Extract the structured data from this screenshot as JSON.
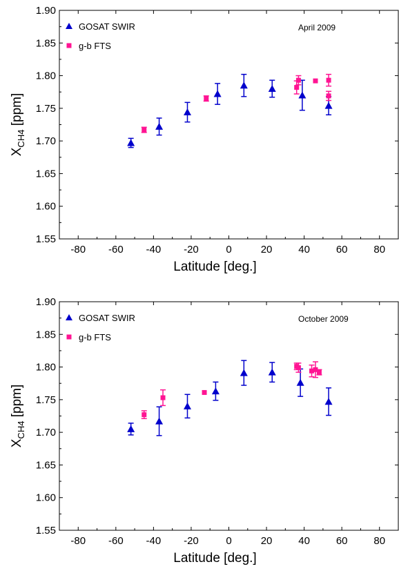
{
  "chart_data": [
    {
      "type": "scatter",
      "title": "",
      "annotation": "April 2009",
      "xlabel": "Latitude [deg.]",
      "ylabel_main": "X",
      "ylabel_sub": "CH4",
      "ylabel_unit": " [ppm]",
      "xlim": [
        -90,
        90
      ],
      "ylim": [
        1.55,
        1.9
      ],
      "xticks": [
        -80,
        -60,
        -40,
        -20,
        0,
        20,
        40,
        60,
        80
      ],
      "yticks": [
        1.55,
        1.6,
        1.65,
        1.7,
        1.75,
        1.8,
        1.85,
        1.9
      ],
      "xtick_labels": [
        "-80",
        "-60",
        "-40",
        "-20",
        "0",
        "20",
        "40",
        "60",
        "80"
      ],
      "ytick_labels": [
        "1.55",
        "1.60",
        "1.65",
        "1.70",
        "1.75",
        "1.80",
        "1.85",
        "1.90"
      ],
      "grid": false,
      "legend_position": "top-left",
      "series": [
        {
          "name": "GOSAT SWIR",
          "marker": "triangle",
          "color": "#0000cc",
          "points": [
            {
              "x": -52,
              "y": 1.697,
              "err": 0.007
            },
            {
              "x": -37,
              "y": 1.722,
              "err": 0.013
            },
            {
              "x": -22,
              "y": 1.744,
              "err": 0.015
            },
            {
              "x": -6,
              "y": 1.772,
              "err": 0.016
            },
            {
              "x": 8,
              "y": 1.785,
              "err": 0.017
            },
            {
              "x": 23,
              "y": 1.78,
              "err": 0.013
            },
            {
              "x": 39,
              "y": 1.77,
              "err": 0.023
            },
            {
              "x": 53,
              "y": 1.754,
              "err": 0.014
            }
          ]
        },
        {
          "name": "g-b FTS",
          "marker": "square",
          "color": "#ff1493",
          "points": [
            {
              "x": -45,
              "y": 1.717,
              "err": 0.004
            },
            {
              "x": -12,
              "y": 1.765,
              "err": 0.004
            },
            {
              "x": 36,
              "y": 1.782,
              "err": 0.01
            },
            {
              "x": 37,
              "y": 1.793,
              "err": 0.007
            },
            {
              "x": 46,
              "y": 1.792,
              "err": 0.0
            },
            {
              "x": 53,
              "y": 1.769,
              "err": 0.007
            },
            {
              "x": 53,
              "y": 1.793,
              "err": 0.009
            }
          ]
        }
      ]
    },
    {
      "type": "scatter",
      "title": "",
      "annotation": "October 2009",
      "xlabel": "Latitude [deg.]",
      "ylabel_main": "X",
      "ylabel_sub": "CH4",
      "ylabel_unit": " [ppm]",
      "xlim": [
        -90,
        90
      ],
      "ylim": [
        1.55,
        1.9
      ],
      "xticks": [
        -80,
        -60,
        -40,
        -20,
        0,
        20,
        40,
        60,
        80
      ],
      "yticks": [
        1.55,
        1.6,
        1.65,
        1.7,
        1.75,
        1.8,
        1.85,
        1.9
      ],
      "xtick_labels": [
        "-80",
        "-60",
        "-40",
        "-20",
        "0",
        "20",
        "40",
        "60",
        "80"
      ],
      "ytick_labels": [
        "1.55",
        "1.60",
        "1.65",
        "1.70",
        "1.75",
        "1.80",
        "1.85",
        "1.90"
      ],
      "grid": false,
      "legend_position": "top-left",
      "series": [
        {
          "name": "GOSAT SWIR",
          "marker": "triangle",
          "color": "#0000cc",
          "points": [
            {
              "x": -52,
              "y": 1.705,
              "err": 0.009
            },
            {
              "x": -37,
              "y": 1.717,
              "err": 0.022
            },
            {
              "x": -22,
              "y": 1.74,
              "err": 0.018
            },
            {
              "x": -7,
              "y": 1.763,
              "err": 0.014
            },
            {
              "x": 8,
              "y": 1.791,
              "err": 0.019
            },
            {
              "x": 23,
              "y": 1.792,
              "err": 0.015
            },
            {
              "x": 38,
              "y": 1.776,
              "err": 0.021
            },
            {
              "x": 53,
              "y": 1.747,
              "err": 0.021
            }
          ]
        },
        {
          "name": "g-b FTS",
          "marker": "square",
          "color": "#ff1493",
          "points": [
            {
              "x": -45,
              "y": 1.727,
              "err": 0.006
            },
            {
              "x": -35,
              "y": 1.753,
              "err": 0.012
            },
            {
              "x": -13,
              "y": 1.761,
              "err": 0.0
            },
            {
              "x": 36,
              "y": 1.801,
              "err": 0.005
            },
            {
              "x": 37,
              "y": 1.799,
              "err": 0.007
            },
            {
              "x": 44,
              "y": 1.794,
              "err": 0.009
            },
            {
              "x": 46,
              "y": 1.796,
              "err": 0.012
            },
            {
              "x": 48,
              "y": 1.792,
              "err": 0.004
            }
          ]
        }
      ]
    }
  ]
}
